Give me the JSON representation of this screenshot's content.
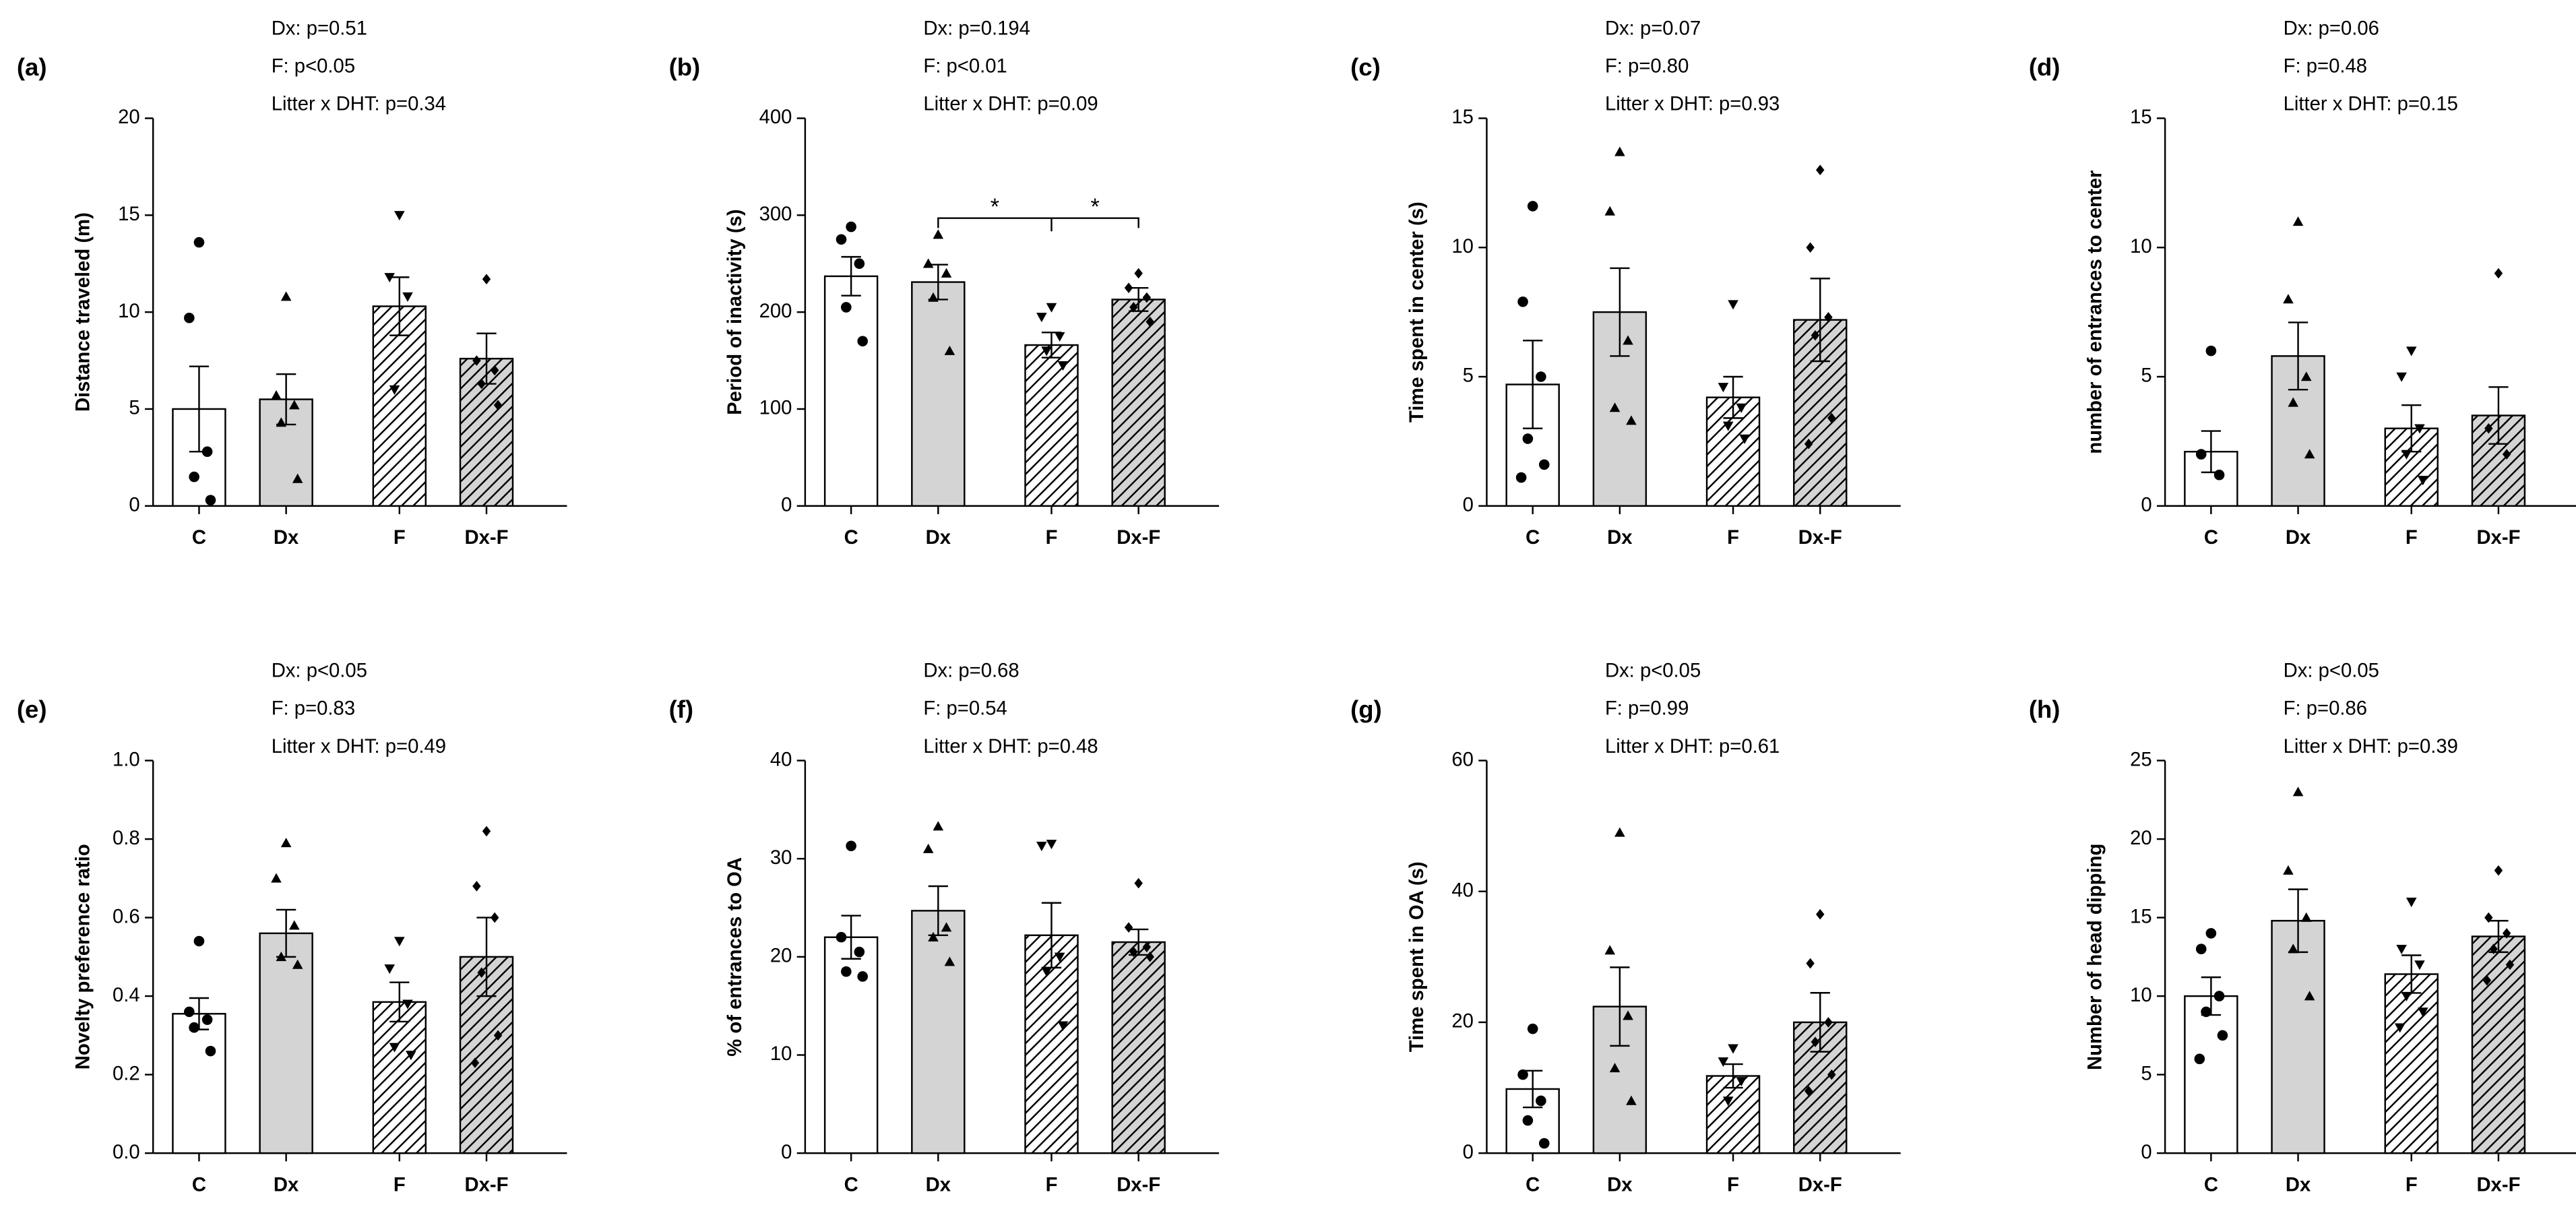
{
  "chart_data": [
    {
      "type": "bar",
      "label": "(a)",
      "annotations": [
        "Dx: p=0.51",
        "F:  p<0.05",
        "Litter x DHT: p=0.34"
      ],
      "ylabel": "Distance traveled (m)",
      "categories": [
        "C",
        "Dx",
        "F",
        "Dx-F"
      ],
      "values": [
        5.0,
        5.5,
        10.3,
        7.6
      ],
      "errors": [
        2.2,
        1.3,
        1.5,
        1.3
      ],
      "points": [
        [
          13.6,
          9.7,
          2.8,
          1.5,
          0.3
        ],
        [
          10.8,
          5.7,
          5.2,
          4.3,
          1.4
        ],
        [
          15,
          11.8,
          10.8,
          6.0
        ],
        [
          11.7,
          7.5,
          7.0,
          6.3,
          5.2
        ]
      ],
      "colors": [
        "#ffffff",
        "#d4d4d4",
        "#ffffff",
        "#d4d4d4"
      ],
      "hatch": [
        false,
        false,
        true,
        true
      ],
      "markers": [
        "circle",
        "triangle",
        "triangle-down",
        "diamond"
      ],
      "ylim": [
        0,
        20
      ],
      "yticks": [
        0,
        5,
        10,
        15,
        20
      ]
    },
    {
      "type": "bar",
      "label": "(b)",
      "annotations": [
        "Dx: p=0.194",
        "F:  p<0.01",
        "Litter x DHT: p=0.09"
      ],
      "ylabel": "Period of inactivity (s)",
      "categories": [
        "C",
        "Dx",
        "F",
        "Dx-F"
      ],
      "values": [
        237,
        231,
        166,
        213
      ],
      "errors": [
        20,
        18,
        13,
        12
      ],
      "points": [
        [
          288,
          275,
          250,
          205,
          170
        ],
        [
          280,
          250,
          240,
          215,
          160
        ],
        [
          205,
          195,
          175,
          160,
          145
        ],
        [
          240,
          225,
          215,
          205,
          190
        ]
      ],
      "colors": [
        "#ffffff",
        "#d4d4d4",
        "#ffffff",
        "#d4d4d4"
      ],
      "hatch": [
        false,
        false,
        true,
        true
      ],
      "markers": [
        "circle",
        "triangle",
        "triangle-down",
        "diamond"
      ],
      "ylim": [
        0,
        400
      ],
      "yticks": [
        0,
        100,
        200,
        300,
        400
      ],
      "significance": [
        "*",
        "*"
      ]
    },
    {
      "type": "bar",
      "label": "(c)",
      "annotations": [
        "Dx: p=0.07",
        "F: p=0.80",
        "Litter x DHT: p=0.93"
      ],
      "ylabel": "Time spent in center (s)",
      "categories": [
        "C",
        "Dx",
        "F",
        "Dx-F"
      ],
      "values": [
        4.7,
        7.5,
        4.2,
        7.2
      ],
      "errors": [
        1.7,
        1.7,
        0.8,
        1.6
      ],
      "points": [
        [
          11.6,
          7.9,
          5.0,
          2.6,
          1.6,
          1.1
        ],
        [
          13.7,
          11.4,
          6.4,
          3.8,
          3.3
        ],
        [
          7.8,
          4.6,
          3.8,
          3.1,
          2.6
        ],
        [
          13,
          10,
          7.3,
          6.6,
          3.4,
          2.4
        ]
      ],
      "colors": [
        "#ffffff",
        "#d4d4d4",
        "#ffffff",
        "#d4d4d4"
      ],
      "hatch": [
        false,
        false,
        true,
        true
      ],
      "markers": [
        "circle",
        "triangle",
        "triangle-down",
        "diamond"
      ],
      "ylim": [
        0,
        15
      ],
      "yticks": [
        0,
        5,
        10,
        15
      ]
    },
    {
      "type": "bar",
      "label": "(d)",
      "annotations": [
        "Dx: p=0.06",
        "F:  p=0.48",
        "Litter x DHT: p=0.15"
      ],
      "ylabel": "number of entrances to center",
      "categories": [
        "C",
        "Dx",
        "F",
        "Dx-F"
      ],
      "values": [
        2.1,
        5.8,
        3.0,
        3.5
      ],
      "errors": [
        0.8,
        1.3,
        0.9,
        1.1
      ],
      "points": [
        [
          6,
          2,
          1.2
        ],
        [
          11,
          8,
          5,
          4,
          2
        ],
        [
          6,
          5,
          3,
          2,
          1
        ],
        [
          9,
          3,
          2
        ]
      ],
      "colors": [
        "#ffffff",
        "#d4d4d4",
        "#ffffff",
        "#d4d4d4"
      ],
      "hatch": [
        false,
        false,
        true,
        true
      ],
      "markers": [
        "circle",
        "triangle",
        "triangle-down",
        "diamond"
      ],
      "ylim": [
        0,
        15
      ],
      "yticks": [
        0,
        5,
        10,
        15
      ]
    },
    {
      "type": "bar",
      "label": "(e)",
      "annotations": [
        "Dx: p<0.05",
        "F:  p=0.83",
        "Litter x DHT: p=0.49"
      ],
      "ylabel": "Novelty preference ratio",
      "categories": [
        "C",
        "Dx",
        "F",
        "Dx-F"
      ],
      "values": [
        0.355,
        0.56,
        0.385,
        0.5
      ],
      "errors": [
        0.04,
        0.06,
        0.05,
        0.1
      ],
      "points": [
        [
          0.54,
          0.36,
          0.34,
          0.32,
          0.26
        ],
        [
          0.79,
          0.7,
          0.58,
          0.5,
          0.48
        ],
        [
          0.54,
          0.47,
          0.38,
          0.27,
          0.25
        ],
        [
          0.82,
          0.68,
          0.6,
          0.46,
          0.3,
          0.23
        ]
      ],
      "colors": [
        "#ffffff",
        "#d4d4d4",
        "#ffffff",
        "#d4d4d4"
      ],
      "hatch": [
        false,
        false,
        true,
        true
      ],
      "markers": [
        "circle",
        "triangle",
        "triangle-down",
        "diamond"
      ],
      "ylim": [
        0,
        1
      ],
      "yticks": [
        {
          "value": 0,
          "label": "0.0"
        },
        0.2,
        0.4,
        0.6,
        0.8,
        {
          "value": 1,
          "label": "1.0"
        }
      ]
    },
    {
      "type": "bar",
      "label": "(f)",
      "annotations": [
        "Dx: p=0.68",
        "F:  p=0.54",
        "Litter x DHT: p=0.48"
      ],
      "ylabel": "% of entrances to OA",
      "categories": [
        "C",
        "Dx",
        "F",
        "Dx-F"
      ],
      "values": [
        22,
        24.7,
        22.2,
        21.5
      ],
      "errors": [
        2.2,
        2.5,
        3.3,
        1.3
      ],
      "points": [
        [
          31.3,
          22,
          20.5,
          18.5,
          18
        ],
        [
          33.3,
          31,
          23,
          22,
          19.5
        ],
        [
          31.5,
          31.3,
          20,
          18.5,
          13
        ],
        [
          27.5,
          23,
          21,
          20.5,
          20
        ]
      ],
      "colors": [
        "#ffffff",
        "#d4d4d4",
        "#ffffff",
        "#d4d4d4"
      ],
      "hatch": [
        false,
        false,
        true,
        true
      ],
      "markers": [
        "circle",
        "triangle",
        "triangle-down",
        "diamond"
      ],
      "ylim": [
        0,
        40
      ],
      "yticks": [
        0,
        10,
        20,
        30,
        40
      ]
    },
    {
      "type": "bar",
      "label": "(g)",
      "annotations": [
        "Dx: p<0.05",
        "F:  p=0.99",
        "Litter x DHT: p=0.61"
      ],
      "ylabel": "Time spent in OA (s)",
      "categories": [
        "C",
        "Dx",
        "F",
        "Dx-F"
      ],
      "values": [
        9.8,
        22.4,
        11.8,
        20
      ],
      "errors": [
        2.8,
        6,
        1.8,
        4.5
      ],
      "points": [
        [
          19,
          12,
          8,
          5,
          1.5
        ],
        [
          49,
          31,
          21,
          13,
          8
        ],
        [
          16,
          14,
          11,
          8
        ],
        [
          36.5,
          29,
          20,
          17,
          12,
          9.5
        ]
      ],
      "colors": [
        "#ffffff",
        "#d4d4d4",
        "#ffffff",
        "#d4d4d4"
      ],
      "hatch": [
        false,
        false,
        true,
        true
      ],
      "markers": [
        "circle",
        "triangle",
        "triangle-down",
        "diamond"
      ],
      "ylim": [
        0,
        60
      ],
      "yticks": [
        0,
        20,
        40,
        60
      ]
    },
    {
      "type": "bar",
      "label": "(h)",
      "annotations": [
        "Dx: p<0.05",
        "F:  p=0.86",
        "Litter x DHT: p=0.39"
      ],
      "ylabel": "Number of head dipping",
      "categories": [
        "C",
        "Dx",
        "F",
        "Dx-F"
      ],
      "values": [
        10,
        14.8,
        11.4,
        13.8
      ],
      "errors": [
        1.2,
        2,
        1.2,
        1
      ],
      "points": [
        [
          14,
          13,
          10,
          9,
          7.5,
          6
        ],
        [
          23,
          18,
          15,
          13,
          10
        ],
        [
          16,
          13,
          12,
          10,
          9,
          8
        ],
        [
          18,
          15,
          14,
          13,
          12,
          11
        ]
      ],
      "colors": [
        "#ffffff",
        "#d4d4d4",
        "#ffffff",
        "#d4d4d4"
      ],
      "hatch": [
        false,
        false,
        true,
        true
      ],
      "markers": [
        "circle",
        "triangle",
        "triangle-down",
        "diamond"
      ],
      "ylim": [
        0,
        25
      ],
      "yticks": [
        0,
        5,
        10,
        15,
        20,
        25
      ]
    }
  ]
}
